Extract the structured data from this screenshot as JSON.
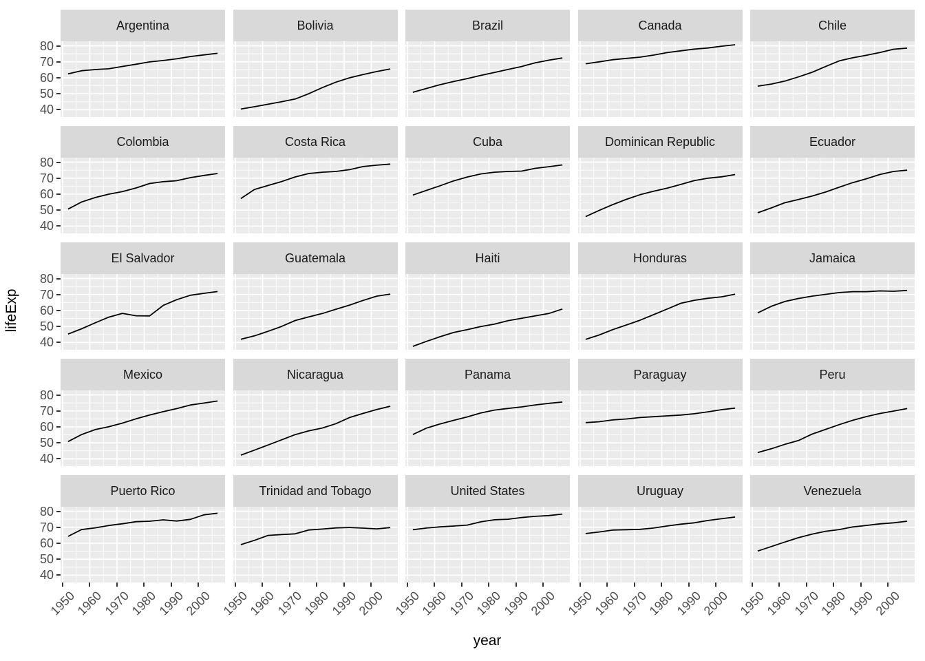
{
  "chart_data": {
    "type": "line",
    "title": "",
    "xlabel": "year",
    "ylabel": "lifeExp",
    "legend": "none",
    "grid": "white major and minor gridlines on gray panels",
    "x": [
      1952,
      1957,
      1962,
      1967,
      1972,
      1977,
      1982,
      1987,
      1992,
      1997,
      2002,
      2007
    ],
    "xlim": [
      1949.25,
      2009.75
    ],
    "x_ticks": [
      1950,
      1960,
      1970,
      1980,
      1990,
      2000
    ],
    "x_minor_ticks": [
      1955,
      1965,
      1975,
      1985,
      1995,
      2005
    ],
    "ylim": [
      35.42,
      82.81
    ],
    "y_ticks": [
      40,
      50,
      60,
      70,
      80
    ],
    "y_minor_ticks": [
      45,
      55,
      65,
      75
    ],
    "facet_rows": 5,
    "facet_cols": 5,
    "facets": [
      {
        "name": "Argentina",
        "values": [
          62.485,
          64.399,
          65.142,
          65.634,
          67.065,
          68.481,
          69.942,
          70.774,
          71.868,
          73.275,
          74.34,
          75.32
        ]
      },
      {
        "name": "Bolivia",
        "values": [
          40.414,
          41.89,
          43.428,
          45.032,
          46.714,
          50.023,
          53.859,
          57.251,
          59.957,
          62.05,
          63.883,
          65.554
        ]
      },
      {
        "name": "Brazil",
        "values": [
          50.917,
          53.285,
          55.665,
          57.632,
          59.504,
          61.489,
          63.336,
          65.205,
          67.057,
          69.388,
          71.006,
          72.39
        ]
      },
      {
        "name": "Canada",
        "values": [
          68.75,
          69.96,
          71.3,
          72.13,
          72.88,
          74.21,
          75.76,
          76.86,
          77.95,
          78.61,
          79.77,
          80.653
        ]
      },
      {
        "name": "Chile",
        "values": [
          54.745,
          56.074,
          57.924,
          60.523,
          63.441,
          67.052,
          70.565,
          72.492,
          74.126,
          75.816,
          77.86,
          78.553
        ]
      },
      {
        "name": "Colombia",
        "values": [
          50.643,
          55.118,
          57.863,
          59.963,
          61.623,
          63.837,
          66.653,
          67.768,
          68.421,
          70.313,
          71.682,
          72.889
        ]
      },
      {
        "name": "Costa Rica",
        "values": [
          57.206,
          62.842,
          65.424,
          67.849,
          70.75,
          72.889,
          73.717,
          74.174,
          75.307,
          77.26,
          78.123,
          78.782
        ]
      },
      {
        "name": "Cuba",
        "values": [
          59.421,
          62.325,
          65.246,
          68.29,
          70.723,
          72.649,
          73.717,
          74.174,
          74.414,
          76.151,
          77.158,
          78.273
        ]
      },
      {
        "name": "Dominican Republic",
        "values": [
          45.928,
          49.828,
          53.459,
          56.751,
          59.631,
          61.788,
          63.727,
          66.046,
          68.457,
          69.957,
          70.847,
          72.235
        ]
      },
      {
        "name": "Ecuador",
        "values": [
          48.357,
          51.356,
          54.64,
          56.678,
          58.796,
          61.31,
          64.342,
          67.231,
          69.613,
          72.312,
          74.173,
          74.994
        ]
      },
      {
        "name": "El Salvador",
        "values": [
          45.262,
          48.57,
          52.307,
          55.855,
          58.207,
          56.696,
          56.604,
          63.154,
          66.798,
          69.535,
          70.734,
          71.878
        ]
      },
      {
        "name": "Guatemala",
        "values": [
          42.023,
          44.142,
          46.954,
          50.016,
          53.738,
          56.029,
          58.137,
          60.782,
          63.373,
          66.322,
          68.978,
          70.259
        ]
      },
      {
        "name": "Haiti",
        "values": [
          37.579,
          40.696,
          43.59,
          46.243,
          48.042,
          49.923,
          51.461,
          53.636,
          55.089,
          56.671,
          58.137,
          60.916
        ]
      },
      {
        "name": "Honduras",
        "values": [
          41.912,
          44.665,
          48.041,
          50.924,
          53.884,
          57.402,
          60.909,
          64.492,
          66.399,
          67.659,
          68.565,
          70.198
        ]
      },
      {
        "name": "Jamaica",
        "values": [
          58.53,
          62.61,
          65.61,
          67.51,
          69.0,
          70.11,
          71.21,
          71.77,
          71.766,
          72.262,
          72.047,
          72.567
        ]
      },
      {
        "name": "Mexico",
        "values": [
          50.789,
          55.19,
          58.299,
          60.11,
          62.361,
          65.032,
          67.405,
          69.498,
          71.455,
          73.67,
          74.902,
          76.195
        ]
      },
      {
        "name": "Nicaragua",
        "values": [
          42.314,
          45.432,
          48.632,
          51.884,
          55.151,
          57.47,
          59.298,
          62.008,
          65.843,
          68.426,
          70.836,
          72.899
        ]
      },
      {
        "name": "Panama",
        "values": [
          55.191,
          59.201,
          61.817,
          64.071,
          66.216,
          68.681,
          70.472,
          71.523,
          72.462,
          73.738,
          74.712,
          75.537
        ]
      },
      {
        "name": "Paraguay",
        "values": [
          62.649,
          63.196,
          64.361,
          64.951,
          65.815,
          66.353,
          66.874,
          67.378,
          68.225,
          69.4,
          70.755,
          71.752
        ]
      },
      {
        "name": "Peru",
        "values": [
          43.902,
          46.263,
          49.096,
          51.445,
          55.448,
          58.447,
          61.406,
          64.134,
          66.458,
          68.386,
          69.906,
          71.421
        ]
      },
      {
        "name": "Puerto Rico",
        "values": [
          64.28,
          68.54,
          69.62,
          71.1,
          72.16,
          73.44,
          73.75,
          74.63,
          73.911,
          74.917,
          77.778,
          78.746
        ]
      },
      {
        "name": "Trinidad and Tobago",
        "values": [
          59.1,
          61.8,
          64.9,
          65.4,
          65.9,
          68.3,
          68.832,
          69.582,
          69.862,
          69.465,
          68.976,
          69.819
        ]
      },
      {
        "name": "United States",
        "values": [
          68.44,
          69.49,
          70.21,
          70.76,
          71.34,
          73.38,
          74.65,
          75.02,
          76.09,
          76.81,
          77.31,
          78.242
        ]
      },
      {
        "name": "Uruguay",
        "values": [
          66.071,
          67.044,
          68.253,
          68.468,
          68.673,
          69.481,
          70.805,
          71.918,
          72.752,
          74.223,
          75.307,
          76.384
        ]
      },
      {
        "name": "Venezuela",
        "values": [
          55.088,
          57.907,
          60.77,
          63.479,
          65.712,
          67.456,
          68.557,
          70.19,
          71.15,
          72.146,
          72.766,
          73.747
        ]
      }
    ]
  },
  "style": {
    "background": "#FFFFFF",
    "panel_fill": "#EBEBEB",
    "strip_fill": "#D9D9D9",
    "grid_color": "#FFFFFF",
    "line_color": "#000000",
    "tick_mark_color": "#333333",
    "tick_label_color": "#4D4D4D",
    "strip_text_color": "#1A1A1A",
    "axis_title_color": "#000000"
  }
}
